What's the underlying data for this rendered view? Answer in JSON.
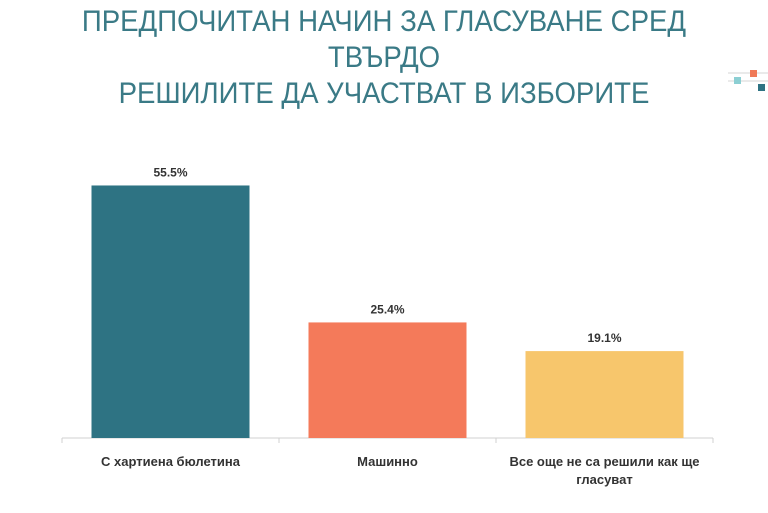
{
  "title_lines": [
    "ПРЕДПОЧИТАН НАЧИН ЗА ГЛАСУВАНЕ СРЕД ТВЪРДО",
    "РЕШИЛИТЕ ДА УЧАСТВАТ В ИЗБОРИТЕ"
  ],
  "colors": {
    "title": "#3a7a86",
    "logo_orange": "#f07a58",
    "logo_light": "#8ccfd3",
    "logo_dark": "#2e7383"
  },
  "chart_data": {
    "type": "bar",
    "title": "ПРЕДПОЧИТАН НАЧИН ЗА ГЛАСУВАНЕ СРЕД ТВЪРДО РЕШИЛИТЕ ДА УЧАСТВАТ В ИЗБОРИТЕ",
    "categories": [
      [
        "С хартиена бюлетина"
      ],
      [
        "Машинно"
      ],
      [
        "Все още не са решили как ще",
        "гласуват"
      ]
    ],
    "values": [
      55.5,
      25.4,
      19.1
    ],
    "value_labels": [
      "55.5%",
      "25.4%",
      "19.1%"
    ],
    "bar_colors": [
      "#2e7383",
      "#f47a5a",
      "#f7c66c"
    ],
    "ylim": [
      0,
      60
    ],
    "grid": false,
    "legend": "none"
  }
}
